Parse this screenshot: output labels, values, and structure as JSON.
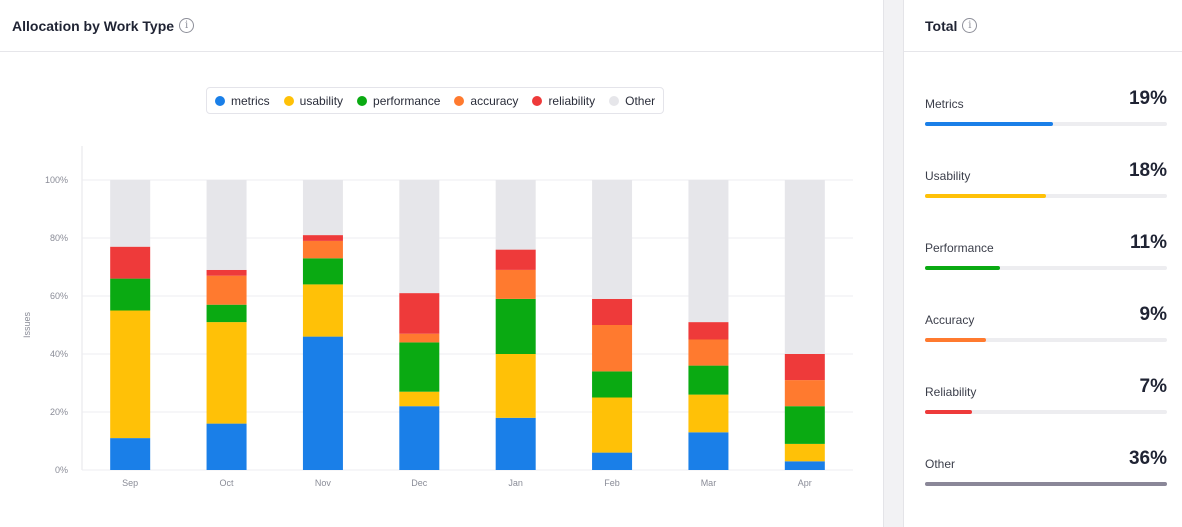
{
  "left_panel": {
    "title": "Allocation by Work Type"
  },
  "right_panel": {
    "title": "Total"
  },
  "info_glyph": "i",
  "legend": [
    {
      "label": "metrics",
      "color": "#1a7fe8"
    },
    {
      "label": "usability",
      "color": "#ffc107"
    },
    {
      "label": "performance",
      "color": "#0aaa12"
    },
    {
      "label": "accuracy",
      "color": "#ff7a2f"
    },
    {
      "label": "reliability",
      "color": "#ee3a3a"
    },
    {
      "label": "Other",
      "color": "#e6e6ea"
    }
  ],
  "chart_data": {
    "type": "bar",
    "stacked": true,
    "categories": [
      "Sep",
      "Oct",
      "Nov",
      "Dec",
      "Jan",
      "Feb",
      "Mar",
      "Apr"
    ],
    "series": [
      {
        "name": "metrics",
        "color": "#1a7fe8",
        "values": [
          11,
          16,
          46,
          22,
          18,
          6,
          13,
          3
        ]
      },
      {
        "name": "usability",
        "color": "#ffc107",
        "values": [
          44,
          35,
          18,
          5,
          22,
          19,
          13,
          6
        ]
      },
      {
        "name": "performance",
        "color": "#0aaa12",
        "values": [
          11,
          6,
          9,
          17,
          19,
          9,
          10,
          13
        ]
      },
      {
        "name": "accuracy",
        "color": "#ff7a2f",
        "values": [
          0,
          10,
          6,
          3,
          10,
          16,
          9,
          9
        ]
      },
      {
        "name": "reliability",
        "color": "#ee3a3a",
        "values": [
          11,
          2,
          2,
          14,
          7,
          9,
          6,
          9
        ]
      },
      {
        "name": "Other",
        "color": "#e6e6ea",
        "values": [
          23,
          31,
          19,
          39,
          24,
          41,
          49,
          60
        ]
      }
    ],
    "ylabel": "Issues",
    "ylim": [
      0,
      100
    ],
    "yticks": [
      "0%",
      "20%",
      "40%",
      "60%",
      "80%",
      "100%"
    ],
    "grid": true,
    "legend_position": "top-center"
  },
  "totals": [
    {
      "label": "Metrics",
      "value": "19%",
      "fraction": 0.53,
      "color": "#1a7fe8"
    },
    {
      "label": "Usability",
      "value": "18%",
      "fraction": 0.5,
      "color": "#ffc107"
    },
    {
      "label": "Performance",
      "value": "11%",
      "fraction": 0.31,
      "color": "#0aaa12"
    },
    {
      "label": "Accuracy",
      "value": "9%",
      "fraction": 0.25,
      "color": "#ff7a2f"
    },
    {
      "label": "Reliability",
      "value": "7%",
      "fraction": 0.195,
      "color": "#ee3a3a"
    },
    {
      "label": "Other",
      "value": "36%",
      "fraction": 1.0,
      "color": "#8a8798"
    }
  ]
}
